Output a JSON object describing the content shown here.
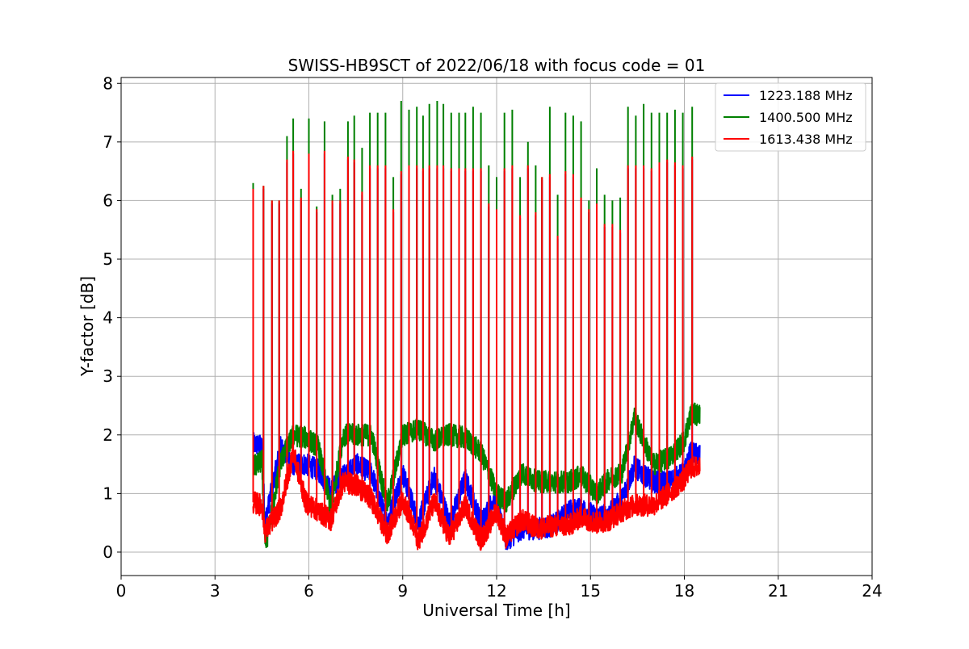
{
  "chart_data": {
    "type": "line",
    "title": "SWISS-HB9SCT of 2022/06/18 with focus code = 01",
    "xlabel": "Universal Time [h]",
    "ylabel": "Y-factor [dB]",
    "xlim": [
      0,
      24
    ],
    "ylim": [
      -0.4,
      8.1
    ],
    "xticks": [
      0,
      3,
      6,
      9,
      12,
      15,
      18,
      21,
      24
    ],
    "yticks": [
      0,
      1,
      2,
      3,
      4,
      5,
      6,
      7,
      8
    ],
    "grid": true,
    "legend_position": "top-right",
    "series": [
      {
        "name": "1223.188 MHz",
        "color": "#0000ff",
        "baseline": [
          [
            4.22,
            1.85
          ],
          [
            4.5,
            1.8
          ],
          [
            4.6,
            0.5
          ],
          [
            5.1,
            1.8
          ],
          [
            5.5,
            1.5
          ],
          [
            5.9,
            1.5
          ],
          [
            6.3,
            1.4
          ],
          [
            6.7,
            1.05
          ],
          [
            7.1,
            1.3
          ],
          [
            7.5,
            1.5
          ],
          [
            8.0,
            1.35
          ],
          [
            8.5,
            0.5
          ],
          [
            9.0,
            1.35
          ],
          [
            9.5,
            0.5
          ],
          [
            10.0,
            1.3
          ],
          [
            10.5,
            0.5
          ],
          [
            11.0,
            1.25
          ],
          [
            11.5,
            0.5
          ],
          [
            12.0,
            1.0
          ],
          [
            12.3,
            0.2
          ],
          [
            12.8,
            0.4
          ],
          [
            13.3,
            0.4
          ],
          [
            13.8,
            0.45
          ],
          [
            14.3,
            0.7
          ],
          [
            14.7,
            0.75
          ],
          [
            15.2,
            0.6
          ],
          [
            15.6,
            0.65
          ],
          [
            16.0,
            0.9
          ],
          [
            16.4,
            1.45
          ],
          [
            17.0,
            1.2
          ],
          [
            17.5,
            1.2
          ],
          [
            18.0,
            1.35
          ],
          [
            18.2,
            1.7
          ],
          [
            18.5,
            1.65
          ]
        ]
      },
      {
        "name": "1400.500 MHz",
        "color": "#008000",
        "baseline": [
          [
            4.22,
            1.45
          ],
          [
            4.5,
            1.55
          ],
          [
            4.6,
            0.05
          ],
          [
            5.1,
            1.55
          ],
          [
            5.5,
            2.0
          ],
          [
            5.9,
            1.95
          ],
          [
            6.3,
            1.8
          ],
          [
            6.7,
            0.75
          ],
          [
            7.1,
            2.0
          ],
          [
            7.5,
            2.0
          ],
          [
            8.0,
            2.0
          ],
          [
            8.5,
            0.8
          ],
          [
            9.0,
            2.0
          ],
          [
            9.5,
            2.1
          ],
          [
            10.0,
            1.9
          ],
          [
            10.5,
            2.0
          ],
          [
            11.0,
            1.95
          ],
          [
            11.5,
            1.7
          ],
          [
            12.0,
            1.0
          ],
          [
            12.3,
            0.85
          ],
          [
            12.8,
            1.35
          ],
          [
            13.3,
            1.2
          ],
          [
            13.8,
            1.2
          ],
          [
            14.3,
            1.2
          ],
          [
            14.7,
            1.3
          ],
          [
            15.2,
            1.0
          ],
          [
            15.6,
            1.25
          ],
          [
            16.0,
            1.35
          ],
          [
            16.4,
            2.3
          ],
          [
            17.0,
            1.5
          ],
          [
            17.5,
            1.6
          ],
          [
            18.0,
            1.9
          ],
          [
            18.2,
            2.35
          ],
          [
            18.5,
            2.35
          ]
        ]
      },
      {
        "name": "1613.438 MHz",
        "color": "#ff0000",
        "baseline": [
          [
            4.22,
            0.85
          ],
          [
            4.5,
            0.8
          ],
          [
            4.6,
            0.35
          ],
          [
            5.1,
            0.75
          ],
          [
            5.5,
            1.7
          ],
          [
            5.9,
            0.85
          ],
          [
            6.3,
            0.7
          ],
          [
            6.7,
            0.55
          ],
          [
            7.1,
            1.2
          ],
          [
            7.5,
            1.15
          ],
          [
            8.0,
            0.9
          ],
          [
            8.5,
            0.3
          ],
          [
            9.0,
            0.9
          ],
          [
            9.5,
            0.2
          ],
          [
            10.0,
            0.85
          ],
          [
            10.5,
            0.25
          ],
          [
            11.0,
            0.8
          ],
          [
            11.5,
            0.2
          ],
          [
            12.0,
            0.7
          ],
          [
            12.3,
            0.25
          ],
          [
            12.8,
            0.55
          ],
          [
            13.3,
            0.4
          ],
          [
            13.8,
            0.45
          ],
          [
            14.3,
            0.45
          ],
          [
            14.7,
            0.6
          ],
          [
            15.2,
            0.5
          ],
          [
            15.6,
            0.55
          ],
          [
            16.0,
            0.7
          ],
          [
            16.4,
            0.8
          ],
          [
            17.0,
            0.8
          ],
          [
            17.5,
            1.0
          ],
          [
            18.0,
            1.25
          ],
          [
            18.2,
            1.45
          ],
          [
            18.5,
            1.45
          ]
        ]
      }
    ],
    "spikes": [
      {
        "x": 4.22,
        "g": 6.3,
        "r": 6.2
      },
      {
        "x": 4.55,
        "g": 6.25,
        "r": 6.25
      },
      {
        "x": 4.82,
        "g": 6.0,
        "r": 6.0
      },
      {
        "x": 5.05,
        "g": 6.0,
        "r": 6.0
      },
      {
        "x": 5.3,
        "g": 7.1,
        "r": 6.7
      },
      {
        "x": 5.5,
        "g": 7.4,
        "r": 6.85
      },
      {
        "x": 5.75,
        "g": 6.2,
        "r": 6.05
      },
      {
        "x": 6.0,
        "g": 7.4,
        "r": 6.8
      },
      {
        "x": 6.25,
        "g": 5.9,
        "r": 5.85
      },
      {
        "x": 6.5,
        "g": 7.35,
        "r": 6.85
      },
      {
        "x": 6.75,
        "g": 6.1,
        "r": 6.0
      },
      {
        "x": 7.0,
        "g": 6.2,
        "r": 6.0
      },
      {
        "x": 7.25,
        "g": 7.35,
        "r": 6.75
      },
      {
        "x": 7.45,
        "g": 7.45,
        "r": 6.7
      },
      {
        "x": 7.7,
        "g": 6.9,
        "r": 6.15
      },
      {
        "x": 7.95,
        "g": 7.5,
        "r": 6.6
      },
      {
        "x": 8.2,
        "g": 7.5,
        "r": 6.6
      },
      {
        "x": 8.45,
        "g": 7.5,
        "r": 6.6
      },
      {
        "x": 8.7,
        "g": 6.4,
        "r": 5.85
      },
      {
        "x": 8.95,
        "g": 7.7,
        "r": 6.5
      },
      {
        "x": 9.2,
        "g": 7.55,
        "r": 6.6
      },
      {
        "x": 9.45,
        "g": 7.6,
        "r": 6.6
      },
      {
        "x": 9.65,
        "g": 7.45,
        "r": 6.55
      },
      {
        "x": 9.85,
        "g": 7.65,
        "r": 6.6
      },
      {
        "x": 10.1,
        "g": 7.7,
        "r": 6.6
      },
      {
        "x": 10.3,
        "g": 7.65,
        "r": 6.6
      },
      {
        "x": 10.55,
        "g": 7.5,
        "r": 6.55
      },
      {
        "x": 10.8,
        "g": 7.5,
        "r": 6.55
      },
      {
        "x": 11.0,
        "g": 7.5,
        "r": 6.55
      },
      {
        "x": 11.25,
        "g": 7.6,
        "r": 6.55
      },
      {
        "x": 11.5,
        "g": 7.5,
        "r": 6.55
      },
      {
        "x": 11.75,
        "g": 6.6,
        "r": 5.95
      },
      {
        "x": 12.0,
        "g": 6.4,
        "r": 5.85
      },
      {
        "x": 12.25,
        "g": 7.5,
        "r": 6.55
      },
      {
        "x": 12.5,
        "g": 7.55,
        "r": 6.6
      },
      {
        "x": 12.75,
        "g": 6.4,
        "r": 5.75
      },
      {
        "x": 13.0,
        "g": 7.0,
        "r": 6.6
      },
      {
        "x": 13.25,
        "g": 6.6,
        "r": 5.8
      },
      {
        "x": 13.45,
        "g": 6.4,
        "r": 6.4
      },
      {
        "x": 13.7,
        "g": 7.6,
        "r": 6.45
      },
      {
        "x": 13.95,
        "g": 6.1,
        "r": 5.4
      },
      {
        "x": 14.2,
        "g": 7.5,
        "r": 6.5
      },
      {
        "x": 14.45,
        "g": 7.45,
        "r": 6.45
      },
      {
        "x": 14.7,
        "g": 7.35,
        "r": 6.05
      },
      {
        "x": 14.95,
        "g": 6.0,
        "r": 5.85
      },
      {
        "x": 15.2,
        "g": 6.55,
        "r": 5.95
      },
      {
        "x": 15.45,
        "g": 6.1,
        "r": 5.6
      },
      {
        "x": 15.7,
        "g": 6.0,
        "r": 5.6
      },
      {
        "x": 15.95,
        "g": 6.05,
        "r": 5.5
      },
      {
        "x": 16.2,
        "g": 7.6,
        "r": 6.6
      },
      {
        "x": 16.45,
        "g": 7.45,
        "r": 6.6
      },
      {
        "x": 16.7,
        "g": 7.65,
        "r": 6.6
      },
      {
        "x": 16.95,
        "g": 7.5,
        "r": 6.55
      },
      {
        "x": 17.2,
        "g": 7.5,
        "r": 6.65
      },
      {
        "x": 17.45,
        "g": 7.5,
        "r": 6.7
      },
      {
        "x": 17.7,
        "g": 7.55,
        "r": 6.65
      },
      {
        "x": 17.95,
        "g": 7.5,
        "r": 6.6
      },
      {
        "x": 18.25,
        "g": 7.6,
        "r": 6.75
      }
    ]
  }
}
